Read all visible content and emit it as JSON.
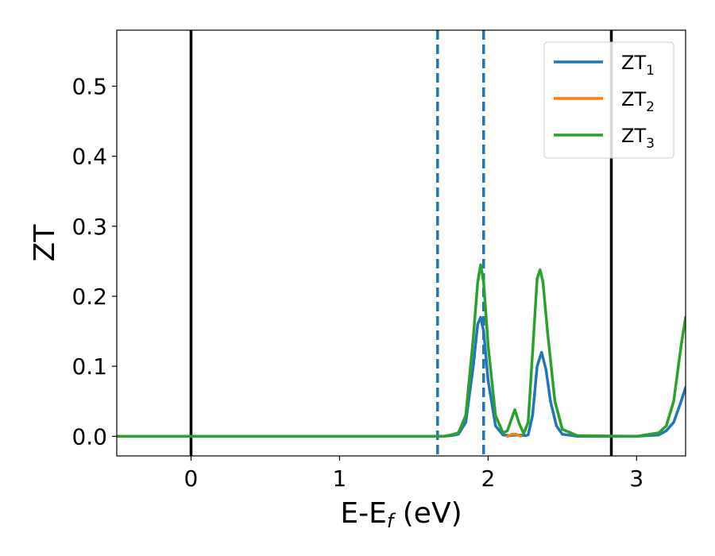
{
  "chart_data": {
    "type": "line",
    "xlabel": "E-E",
    "xlabel_sub": "f",
    "xlabel_unit": " (eV)",
    "ylabel": "ZT",
    "xlim": [
      -0.5,
      3.33
    ],
    "ylim": [
      -0.028,
      0.58
    ],
    "xticks": [
      0,
      1,
      2,
      3
    ],
    "xtick_labels": [
      "0",
      "1",
      "2",
      "3"
    ],
    "yticks": [
      0.0,
      0.1,
      0.2,
      0.3,
      0.4,
      0.5
    ],
    "ytick_labels": [
      "0.0",
      "0.1",
      "0.2",
      "0.3",
      "0.4",
      "0.5"
    ],
    "grid": false,
    "legend_placement": "top-right",
    "vertical_lines": [
      {
        "x": 0.0,
        "style": "solid",
        "color": "#000000"
      },
      {
        "x": 2.83,
        "style": "solid",
        "color": "#000000"
      },
      {
        "x": 1.66,
        "style": "dashed",
        "color": "#1f77b4"
      },
      {
        "x": 1.97,
        "style": "dashed",
        "color": "#1f77b4"
      }
    ],
    "series": [
      {
        "name": "ZT",
        "name_sub": "1",
        "color": "#1f77b4",
        "x": [
          -0.5,
          1.6,
          1.7,
          1.75,
          1.8,
          1.85,
          1.9,
          1.93,
          1.95,
          1.97,
          2.0,
          2.05,
          2.1,
          2.15,
          2.2,
          2.25,
          2.27,
          2.3,
          2.33,
          2.36,
          2.39,
          2.42,
          2.46,
          2.5,
          2.6,
          3.0,
          3.15,
          3.2,
          3.25,
          3.3,
          3.33
        ],
        "y": [
          0.0,
          0.0,
          0.0,
          0.001,
          0.003,
          0.02,
          0.1,
          0.16,
          0.17,
          0.15,
          0.08,
          0.015,
          0.002,
          0.001,
          0.002,
          0.001,
          0.002,
          0.03,
          0.1,
          0.12,
          0.095,
          0.05,
          0.015,
          0.003,
          0.0,
          0.0,
          0.002,
          0.008,
          0.02,
          0.05,
          0.07
        ]
      },
      {
        "name": "ZT",
        "name_sub": "2",
        "color": "#ff7f0e",
        "x": [
          2.13,
          2.16,
          2.19,
          2.22
        ],
        "y": [
          0.0,
          0.003,
          0.003,
          0.0
        ]
      },
      {
        "name": "ZT",
        "name_sub": "3",
        "color": "#2ca02c",
        "x": [
          -0.5,
          1.6,
          1.7,
          1.75,
          1.8,
          1.85,
          1.9,
          1.93,
          1.95,
          1.97,
          2.0,
          2.05,
          2.1,
          2.13,
          2.15,
          2.18,
          2.21,
          2.24,
          2.27,
          2.3,
          2.33,
          2.35,
          2.37,
          2.4,
          2.45,
          2.5,
          2.6,
          3.0,
          3.15,
          3.2,
          3.25,
          3.3,
          3.33
        ],
        "y": [
          0.0,
          0.0,
          0.0,
          0.002,
          0.005,
          0.03,
          0.14,
          0.22,
          0.245,
          0.22,
          0.13,
          0.03,
          0.005,
          0.008,
          0.02,
          0.038,
          0.018,
          0.004,
          0.02,
          0.12,
          0.225,
          0.238,
          0.22,
          0.15,
          0.05,
          0.01,
          0.001,
          0.0,
          0.005,
          0.015,
          0.05,
          0.13,
          0.17
        ]
      }
    ]
  }
}
